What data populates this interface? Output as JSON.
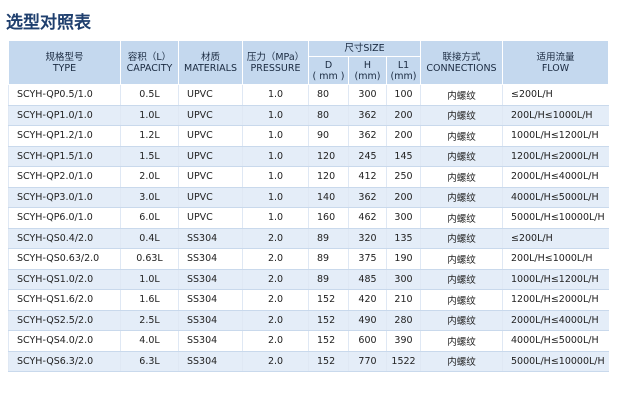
{
  "title": "选型对照表",
  "table": {
    "header": {
      "type": [
        "规格型号",
        "TYPE"
      ],
      "capacity": [
        "容积（L）",
        "CAPACITY"
      ],
      "materials": [
        "材质",
        "MATERIALS"
      ],
      "pressure": [
        "压力（MPa）",
        "PRESSURE"
      ],
      "size": "尺寸SIZE",
      "d": [
        "D",
        "( mm )"
      ],
      "h": [
        "H",
        "(mm)"
      ],
      "l1": [
        "L1",
        "(mm)"
      ],
      "connections": [
        "联接方式",
        "CONNECTIONS"
      ],
      "flow": [
        "适用流量",
        "FLOW"
      ]
    },
    "rows": [
      [
        "SCYH-QP0.5/1.0",
        "0.5L",
        "UPVC",
        "1.0",
        "80",
        "300",
        "100",
        "内螺纹",
        "≤200L/H"
      ],
      [
        "SCYH-QP1.0/1.0",
        "1.0L",
        "UPVC",
        "1.0",
        "80",
        "362",
        "200",
        "内螺纹",
        "200L/H≤1000L/H"
      ],
      [
        "SCYH-QP1.2/1.0",
        "1.2L",
        "UPVC",
        "1.0",
        "90",
        "362",
        "200",
        "内螺纹",
        "1000L/H≤1200L/H"
      ],
      [
        "SCYH-QP1.5/1.0",
        "1.5L",
        "UPVC",
        "1.0",
        "120",
        "245",
        "145",
        "内螺纹",
        "1200L/H≤2000L/H"
      ],
      [
        "SCYH-QP2.0/1.0",
        "2.0L",
        "UPVC",
        "1.0",
        "120",
        "412",
        "250",
        "内螺纹",
        "2000L/H≤4000L/H"
      ],
      [
        "SCYH-QP3.0/1.0",
        "3.0L",
        "UPVC",
        "1.0",
        "140",
        "362",
        "200",
        "内螺纹",
        "4000L/H≤5000L/H"
      ],
      [
        "SCYH-QP6.0/1.0",
        "6.0L",
        "UPVC",
        "1.0",
        "160",
        "462",
        "300",
        "内螺纹",
        "5000L/H≤10000L/H"
      ],
      [
        "SCYH-QS0.4/2.0",
        "0.4L",
        "SS304",
        "2.0",
        "89",
        "320",
        "135",
        "内螺纹",
        "≤200L/H"
      ],
      [
        "SCYH-QS0.63/2.0",
        "0.63L",
        "SS304",
        "2.0",
        "89",
        "375",
        "190",
        "内螺纹",
        "200L/H≤1000L/H"
      ],
      [
        "SCYH-QS1.0/2.0",
        "1.0L",
        "SS304",
        "2.0",
        "89",
        "485",
        "300",
        "内螺纹",
        "1000L/H≤1200L/H"
      ],
      [
        "SCYH-QS1.6/2.0",
        "1.6L",
        "SS304",
        "2.0",
        "152",
        "420",
        "210",
        "内螺纹",
        "1200L/H≤2000L/H"
      ],
      [
        "SCYH-QS2.5/2.0",
        "2.5L",
        "SS304",
        "2.0",
        "152",
        "490",
        "280",
        "内螺纹",
        "2000L/H≤4000L/H"
      ],
      [
        "SCYH-QS4.0/2.0",
        "4.0L",
        "SS304",
        "2.0",
        "152",
        "600",
        "390",
        "内螺纹",
        "4000L/H≤5000L/H"
      ],
      [
        "SCYH-QS6.3/2.0",
        "6.3L",
        "SS304",
        "2.0",
        "152",
        "770",
        "1522",
        "内螺纹",
        "5000L/H≤10000L/H"
      ]
    ]
  }
}
